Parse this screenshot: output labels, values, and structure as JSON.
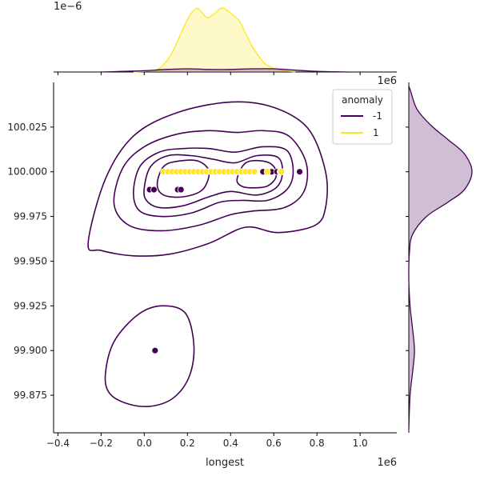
{
  "chart_data": {
    "type": "scatter",
    "subtype": "jointplot-kde",
    "title": "",
    "xlabel": "longest",
    "ylabel": "",
    "x_scale_label": "1e6",
    "y_scale_label": "1e6",
    "top_marginal_scale_label": "1e−6",
    "xlim": [
      -0.42,
      1.17
    ],
    "ylim": [
      99.854,
      100.05
    ],
    "x_ticks": [
      {
        "value": -0.4,
        "label": "−0.4"
      },
      {
        "value": -0.2,
        "label": "−0.2"
      },
      {
        "value": 0.0,
        "label": "0.0"
      },
      {
        "value": 0.2,
        "label": "0.2"
      },
      {
        "value": 0.4,
        "label": "0.4"
      },
      {
        "value": 0.6,
        "label": "0.6"
      },
      {
        "value": 0.8,
        "label": "0.8"
      },
      {
        "value": 1.0,
        "label": "1.0"
      }
    ],
    "y_ticks": [
      {
        "value": 99.875,
        "label": "99.875"
      },
      {
        "value": 99.9,
        "label": "99.900"
      },
      {
        "value": 99.925,
        "label": "99.925"
      },
      {
        "value": 99.95,
        "label": "99.950"
      },
      {
        "value": 99.975,
        "label": "99.975"
      },
      {
        "value": 100.0,
        "label": "100.000"
      },
      {
        "value": 100.025,
        "label": "100.025"
      }
    ],
    "legend": {
      "title": "anomaly",
      "position": "top-right",
      "entries": [
        {
          "label": "-1",
          "color": "#440154"
        },
        {
          "label": "1",
          "color": "#fde725"
        }
      ]
    },
    "series": [
      {
        "name": "-1",
        "color": "#440154",
        "points": [
          {
            "x": 0.05,
            "y": 99.9
          },
          {
            "x": 0.025,
            "y": 99.99
          },
          {
            "x": 0.045,
            "y": 99.99
          },
          {
            "x": 0.155,
            "y": 99.99
          },
          {
            "x": 0.17,
            "y": 99.99
          },
          {
            "x": 0.55,
            "y": 100.0
          },
          {
            "x": 0.59,
            "y": 100.0
          },
          {
            "x": 0.615,
            "y": 100.0
          },
          {
            "x": 0.72,
            "y": 100.0
          }
        ]
      },
      {
        "name": "1",
        "color": "#fde725",
        "points": [
          {
            "x": 0.09,
            "y": 100.0
          },
          {
            "x": 0.11,
            "y": 100.0
          },
          {
            "x": 0.13,
            "y": 100.0
          },
          {
            "x": 0.15,
            "y": 100.0
          },
          {
            "x": 0.17,
            "y": 100.0
          },
          {
            "x": 0.19,
            "y": 100.0
          },
          {
            "x": 0.21,
            "y": 100.0
          },
          {
            "x": 0.23,
            "y": 100.0
          },
          {
            "x": 0.25,
            "y": 100.0
          },
          {
            "x": 0.27,
            "y": 100.0
          },
          {
            "x": 0.29,
            "y": 100.0
          },
          {
            "x": 0.31,
            "y": 100.0
          },
          {
            "x": 0.33,
            "y": 100.0
          },
          {
            "x": 0.35,
            "y": 100.0
          },
          {
            "x": 0.37,
            "y": 100.0
          },
          {
            "x": 0.39,
            "y": 100.0
          },
          {
            "x": 0.41,
            "y": 100.0
          },
          {
            "x": 0.43,
            "y": 100.0
          },
          {
            "x": 0.45,
            "y": 100.0
          },
          {
            "x": 0.47,
            "y": 100.0
          },
          {
            "x": 0.49,
            "y": 100.0
          },
          {
            "x": 0.51,
            "y": 100.0
          },
          {
            "x": 0.57,
            "y": 100.0
          },
          {
            "x": 0.63,
            "y": 100.0
          },
          {
            "x": 0.635,
            "y": 100.0
          }
        ]
      }
    ],
    "kde_contours": [
      {
        "series": "-1",
        "level": 1,
        "path": [
          [
            -0.26,
            99.96
          ],
          [
            -0.18,
            99.996
          ],
          [
            -0.05,
            100.02
          ],
          [
            0.15,
            100.033
          ],
          [
            0.4,
            100.039
          ],
          [
            0.6,
            100.036
          ],
          [
            0.76,
            100.024
          ],
          [
            0.84,
            100.0
          ],
          [
            0.84,
            99.98
          ],
          [
            0.79,
            99.97
          ],
          [
            0.62,
            99.966
          ],
          [
            0.47,
            99.969
          ],
          [
            0.3,
            99.96
          ],
          [
            0.12,
            99.954
          ],
          [
            -0.05,
            99.953
          ],
          [
            -0.2,
            99.956
          ]
        ]
      },
      {
        "series": "-1",
        "level": 2,
        "path": [
          [
            -0.14,
            99.982
          ],
          [
            -0.1,
            100.002
          ],
          [
            0.0,
            100.014
          ],
          [
            0.15,
            100.021
          ],
          [
            0.3,
            100.023
          ],
          [
            0.43,
            100.022
          ],
          [
            0.55,
            100.023
          ],
          [
            0.67,
            100.02
          ],
          [
            0.75,
            100.005
          ],
          [
            0.74,
            99.989
          ],
          [
            0.65,
            99.98
          ],
          [
            0.5,
            99.978
          ],
          [
            0.4,
            99.976
          ],
          [
            0.25,
            99.97
          ],
          [
            0.08,
            99.967
          ],
          [
            -0.07,
            99.97
          ]
        ]
      },
      {
        "series": "-1",
        "level": 3,
        "path": [
          [
            -0.05,
            99.988
          ],
          [
            -0.02,
            100.003
          ],
          [
            0.07,
            100.011
          ],
          [
            0.18,
            100.013
          ],
          [
            0.3,
            100.013
          ],
          [
            0.42,
            100.011
          ],
          [
            0.55,
            100.014
          ],
          [
            0.66,
            100.012
          ],
          [
            0.69,
            100.0
          ],
          [
            0.66,
            99.99
          ],
          [
            0.57,
            99.984
          ],
          [
            0.45,
            99.984
          ],
          [
            0.35,
            99.983
          ],
          [
            0.22,
            99.977
          ],
          [
            0.08,
            99.975
          ],
          [
            -0.02,
            99.978
          ]
        ]
      },
      {
        "series": "-1",
        "level": 4,
        "path": [
          [
            0.0,
            99.991
          ],
          [
            0.03,
            100.003
          ],
          [
            0.11,
            100.009
          ],
          [
            0.22,
            100.009
          ],
          [
            0.32,
            100.007
          ],
          [
            0.42,
            100.005
          ],
          [
            0.52,
            100.009
          ],
          [
            0.62,
            100.008
          ],
          [
            0.64,
            99.999
          ],
          [
            0.61,
            99.991
          ],
          [
            0.52,
            99.987
          ],
          [
            0.4,
            99.989
          ],
          [
            0.3,
            99.986
          ],
          [
            0.18,
            99.981
          ],
          [
            0.07,
            99.98
          ],
          [
            0.01,
            99.984
          ]
        ]
      },
      {
        "series": "-1",
        "level": 5,
        "path": [
          [
            0.06,
            99.993
          ],
          [
            0.09,
            100.003
          ],
          [
            0.16,
            100.006
          ],
          [
            0.25,
            100.006
          ],
          [
            0.3,
            100.0
          ],
          [
            0.27,
            99.99
          ],
          [
            0.18,
            99.986
          ],
          [
            0.09,
            99.987
          ]
        ]
      },
      {
        "series": "-1",
        "level": 5,
        "path": [
          [
            0.43,
            99.996
          ],
          [
            0.47,
            100.005
          ],
          [
            0.55,
            100.006
          ],
          [
            0.6,
            100.003
          ],
          [
            0.61,
            99.997
          ],
          [
            0.57,
            99.992
          ],
          [
            0.5,
            99.991
          ],
          [
            0.45,
            99.992
          ]
        ]
      },
      {
        "series": "-1",
        "level": 1,
        "path": [
          [
            -0.18,
            99.887
          ],
          [
            -0.14,
            99.905
          ],
          [
            -0.03,
            99.92
          ],
          [
            0.08,
            99.925
          ],
          [
            0.19,
            99.921
          ],
          [
            0.23,
            99.903
          ],
          [
            0.21,
            99.886
          ],
          [
            0.14,
            99.874
          ],
          [
            0.04,
            99.869
          ],
          [
            -0.07,
            99.87
          ],
          [
            -0.16,
            99.876
          ]
        ]
      }
    ],
    "top_marginal": {
      "scale_label": "1e−6",
      "series": [
        {
          "name": "1",
          "color": "#fde725",
          "density_rel": [
            [
              -0.05,
              0.0
            ],
            [
              0.0,
              0.01
            ],
            [
              0.06,
              0.04
            ],
            [
              0.09,
              0.12
            ],
            [
              0.12,
              0.25
            ],
            [
              0.15,
              0.45
            ],
            [
              0.18,
              0.68
            ],
            [
              0.21,
              0.88
            ],
            [
              0.24,
              0.99
            ],
            [
              0.26,
              0.96
            ],
            [
              0.29,
              0.85
            ],
            [
              0.32,
              0.9
            ],
            [
              0.36,
              1.0
            ],
            [
              0.4,
              0.92
            ],
            [
              0.44,
              0.8
            ],
            [
              0.47,
              0.6
            ],
            [
              0.5,
              0.4
            ],
            [
              0.53,
              0.25
            ],
            [
              0.56,
              0.13
            ],
            [
              0.6,
              0.06
            ],
            [
              0.65,
              0.02
            ],
            [
              0.7,
              0.0
            ]
          ]
        },
        {
          "name": "-1",
          "color": "#440154",
          "density_rel": [
            [
              -0.2,
              0.0
            ],
            [
              -0.1,
              0.01
            ],
            [
              0.0,
              0.02
            ],
            [
              0.1,
              0.04
            ],
            [
              0.2,
              0.05
            ],
            [
              0.3,
              0.04
            ],
            [
              0.4,
              0.04
            ],
            [
              0.5,
              0.05
            ],
            [
              0.6,
              0.05
            ],
            [
              0.7,
              0.03
            ],
            [
              0.8,
              0.01
            ],
            [
              0.95,
              0.0
            ]
          ]
        }
      ]
    },
    "right_marginal": {
      "series": [
        {
          "name": "-1",
          "color": "#440154",
          "density_rel": [
            [
              99.856,
              0.0
            ],
            [
              99.875,
              0.02
            ],
            [
              99.888,
              0.06
            ],
            [
              99.9,
              0.09
            ],
            [
              99.912,
              0.06
            ],
            [
              99.925,
              0.02
            ],
            [
              99.94,
              0.0
            ],
            [
              99.955,
              0.01
            ],
            [
              99.965,
              0.06
            ],
            [
              99.975,
              0.28
            ],
            [
              99.983,
              0.62
            ],
            [
              99.99,
              0.88
            ],
            [
              100.0,
              1.0
            ],
            [
              100.01,
              0.88
            ],
            [
              100.018,
              0.62
            ],
            [
              100.026,
              0.35
            ],
            [
              100.035,
              0.13
            ],
            [
              100.045,
              0.03
            ],
            [
              100.048,
              0.0
            ]
          ]
        }
      ]
    }
  }
}
